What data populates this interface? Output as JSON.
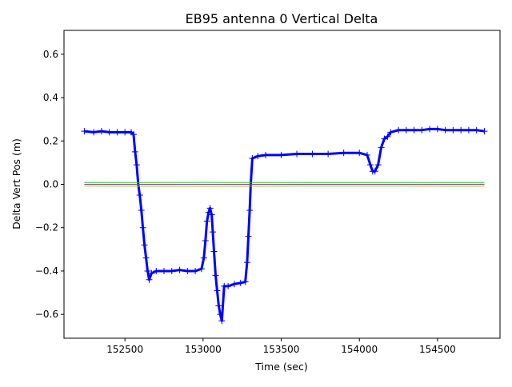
{
  "chart_data": {
    "type": "scatter",
    "title": "EB95 antenna 0 Vertical Delta",
    "xlabel": "Time (sec)",
    "ylabel": "Delta Vert Pos (m)",
    "xlim": [
      152110,
      154900
    ],
    "ylim": [
      -0.71,
      0.71
    ],
    "x_ticks": [
      152500,
      153000,
      153500,
      154000,
      154500
    ],
    "y_ticks": [
      -0.6,
      -0.4,
      -0.2,
      0.0,
      0.2,
      0.4,
      0.6
    ],
    "x_tick_labels": [
      "152500",
      "153000",
      "153500",
      "154000",
      "154500"
    ],
    "y_tick_labels": [
      "−0.6",
      "−0.4",
      "−0.2",
      "0.0",
      "0.2",
      "0.4",
      "0.6"
    ],
    "grid": false,
    "series": [
      {
        "color": "#0000ff",
        "marker": "+",
        "points": [
          [
            152240,
            0.245
          ],
          [
            152300,
            0.24
          ],
          [
            152350,
            0.245
          ],
          [
            152400,
            0.24
          ],
          [
            152450,
            0.24
          ],
          [
            152500,
            0.24
          ],
          [
            152540,
            0.24
          ],
          [
            152555,
            0.23
          ],
          [
            152565,
            0.15
          ],
          [
            152575,
            0.09
          ],
          [
            152585,
            0.0
          ],
          [
            152595,
            -0.05
          ],
          [
            152605,
            -0.12
          ],
          [
            152615,
            -0.2
          ],
          [
            152625,
            -0.28
          ],
          [
            152635,
            -0.34
          ],
          [
            152645,
            -0.4
          ],
          [
            152655,
            -0.44
          ],
          [
            152670,
            -0.41
          ],
          [
            152700,
            -0.4
          ],
          [
            152750,
            -0.4
          ],
          [
            152800,
            -0.4
          ],
          [
            152850,
            -0.395
          ],
          [
            152900,
            -0.4
          ],
          [
            152950,
            -0.4
          ],
          [
            152990,
            -0.39
          ],
          [
            153005,
            -0.34
          ],
          [
            153015,
            -0.26
          ],
          [
            153025,
            -0.17
          ],
          [
            153035,
            -0.13
          ],
          [
            153045,
            -0.11
          ],
          [
            153055,
            -0.14
          ],
          [
            153062,
            -0.22
          ],
          [
            153070,
            -0.31
          ],
          [
            153080,
            -0.42
          ],
          [
            153090,
            -0.49
          ],
          [
            153100,
            -0.56
          ],
          [
            153110,
            -0.6
          ],
          [
            153120,
            -0.63
          ],
          [
            153135,
            -0.47
          ],
          [
            153160,
            -0.47
          ],
          [
            153200,
            -0.46
          ],
          [
            153240,
            -0.455
          ],
          [
            153270,
            -0.45
          ],
          [
            153282,
            -0.36
          ],
          [
            153290,
            -0.24
          ],
          [
            153298,
            -0.12
          ],
          [
            153305,
            0.0
          ],
          [
            153315,
            0.12
          ],
          [
            153350,
            0.13
          ],
          [
            153400,
            0.135
          ],
          [
            153500,
            0.135
          ],
          [
            153600,
            0.14
          ],
          [
            153700,
            0.14
          ],
          [
            153800,
            0.14
          ],
          [
            153900,
            0.145
          ],
          [
            154000,
            0.145
          ],
          [
            154050,
            0.135
          ],
          [
            154070,
            0.09
          ],
          [
            154085,
            0.06
          ],
          [
            154100,
            0.06
          ],
          [
            154120,
            0.09
          ],
          [
            154140,
            0.17
          ],
          [
            154160,
            0.21
          ],
          [
            154180,
            0.22
          ],
          [
            154200,
            0.24
          ],
          [
            154250,
            0.25
          ],
          [
            154300,
            0.25
          ],
          [
            154350,
            0.25
          ],
          [
            154400,
            0.25
          ],
          [
            154450,
            0.255
          ],
          [
            154500,
            0.255
          ],
          [
            154550,
            0.25
          ],
          [
            154600,
            0.25
          ],
          [
            154650,
            0.25
          ],
          [
            154700,
            0.25
          ],
          [
            154750,
            0.25
          ],
          [
            154800,
            0.245
          ]
        ]
      },
      {
        "color": "#22cc22",
        "marker": "line",
        "points": [
          [
            152240,
            0.008
          ],
          [
            153000,
            0.009
          ],
          [
            154000,
            0.008
          ],
          [
            154800,
            0.008
          ]
        ]
      },
      {
        "color": "#88cc22",
        "marker": "line",
        "points": [
          [
            152240,
            -0.008
          ],
          [
            153000,
            -0.009
          ],
          [
            154000,
            -0.008
          ],
          [
            154800,
            -0.009
          ]
        ]
      },
      {
        "color": "#884488",
        "marker": "line",
        "points": [
          [
            152240,
            0.0
          ],
          [
            153000,
            0.0
          ],
          [
            154000,
            0.0
          ],
          [
            154800,
            0.0
          ]
        ]
      }
    ]
  }
}
